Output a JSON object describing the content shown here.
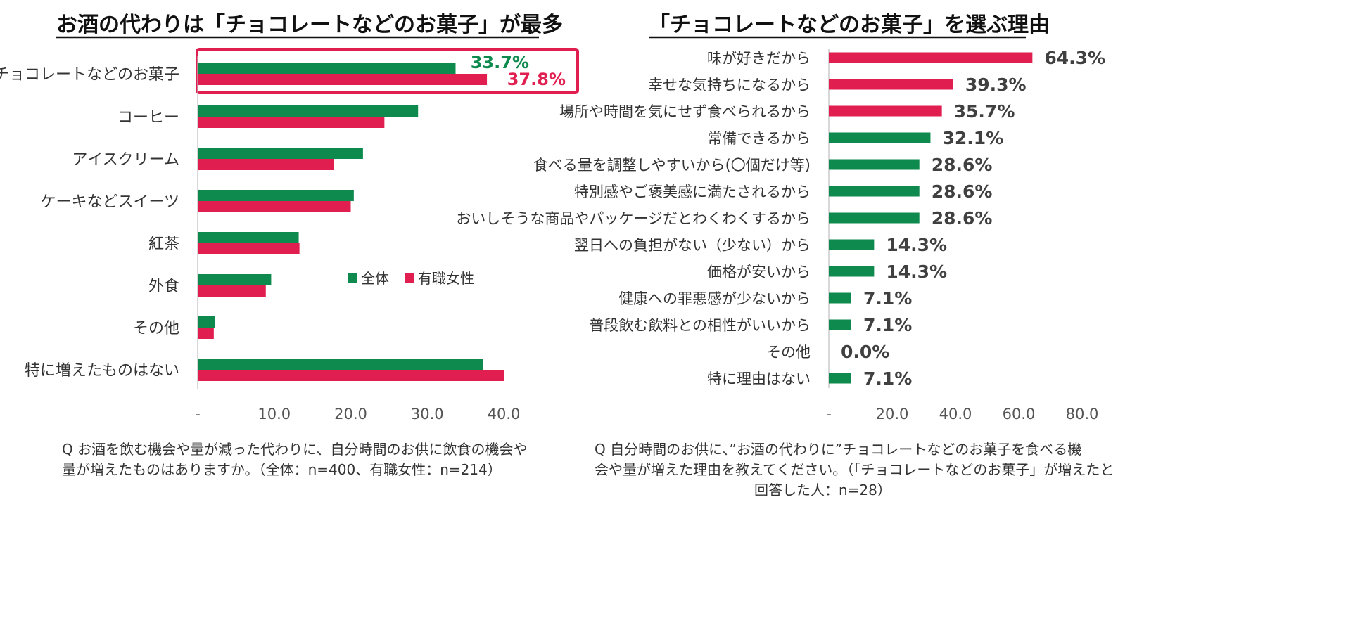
{
  "colors": {
    "all": "#0e8a4e",
    "female": "#e01e4f",
    "highlight": "#e01e4f",
    "axis": "#bfbfbf"
  },
  "chart_data": [
    {
      "type": "bar",
      "orientation": "horizontal",
      "title": "お酒の代わりは「チョコレートなどのお菓子」が最多",
      "categories": [
        "チョコレートなどのお菓子",
        "コーヒー",
        "アイスクリーム",
        "ケーキなどスイーツ",
        "紅茶",
        "外食",
        "その他",
        "特に増えたものはない"
      ],
      "series": [
        {
          "name": "全体",
          "values": [
            33.7,
            28.8,
            21.6,
            20.4,
            13.2,
            9.6,
            2.3,
            37.3
          ]
        },
        {
          "name": "有職女性",
          "values": [
            37.8,
            24.4,
            17.8,
            20.0,
            13.3,
            8.9,
            2.1,
            40.0
          ]
        }
      ],
      "data_labels": [
        "33.7%",
        "37.8%"
      ],
      "xlim": [
        0,
        40
      ],
      "xticks": [
        "-",
        "10.0",
        "20.0",
        "30.0",
        "40.0"
      ],
      "legend": "center-right",
      "highlight_category": "チョコレートなどのお菓子",
      "note_lines": [
        "Q お酒を飲む機会や量が減った代わりに、自分時間のお供に飲食の機会や",
        "量が増えたものはありますか。（全体：n=400、有職女性：n=214）"
      ]
    },
    {
      "type": "bar",
      "orientation": "horizontal",
      "title": "「チョコレートなどのお菓子」を選ぶ理由",
      "categories": [
        "味が好きだから",
        "幸せな気持ちになるから",
        "場所や時間を気にせず食べられるから",
        "常備できるから",
        "食べる量を調整しやすいから(〇個だけ等)",
        "特別感やご褒美感に満たされるから",
        "おいしそうな商品やパッケージだとわくわくするから",
        "翌日への負担がない（少ない）から",
        "価格が安いから",
        "健康への罪悪感が少ないから",
        "普段飲む飲料との相性がいいから",
        "その他",
        "特に理由はない"
      ],
      "values": [
        64.3,
        39.3,
        35.7,
        32.1,
        28.6,
        28.6,
        28.6,
        14.3,
        14.3,
        7.1,
        7.1,
        0.0,
        7.1
      ],
      "labels": [
        "64.3%",
        "39.3%",
        "35.7%",
        "32.1%",
        "28.6%",
        "28.6%",
        "28.6%",
        "14.3%",
        "14.3%",
        "7.1%",
        "7.1%",
        "0.0%",
        "7.1%"
      ],
      "bar_colors": [
        "female",
        "female",
        "female",
        "all",
        "all",
        "all",
        "all",
        "all",
        "all",
        "all",
        "all",
        "all",
        "all"
      ],
      "xlim": [
        0,
        80
      ],
      "xticks": [
        "-",
        "20.0",
        "40.0",
        "60.0",
        "80.0"
      ],
      "note_lines": [
        "Q 自分時間のお供に、”お酒の代わりに”チョコレートなどのお菓子を食べる機",
        "会や量が増えた理由を教えてください。（「チョコレートなどのお菓子」が増えたと",
        "回答した人：n=28）"
      ]
    }
  ]
}
